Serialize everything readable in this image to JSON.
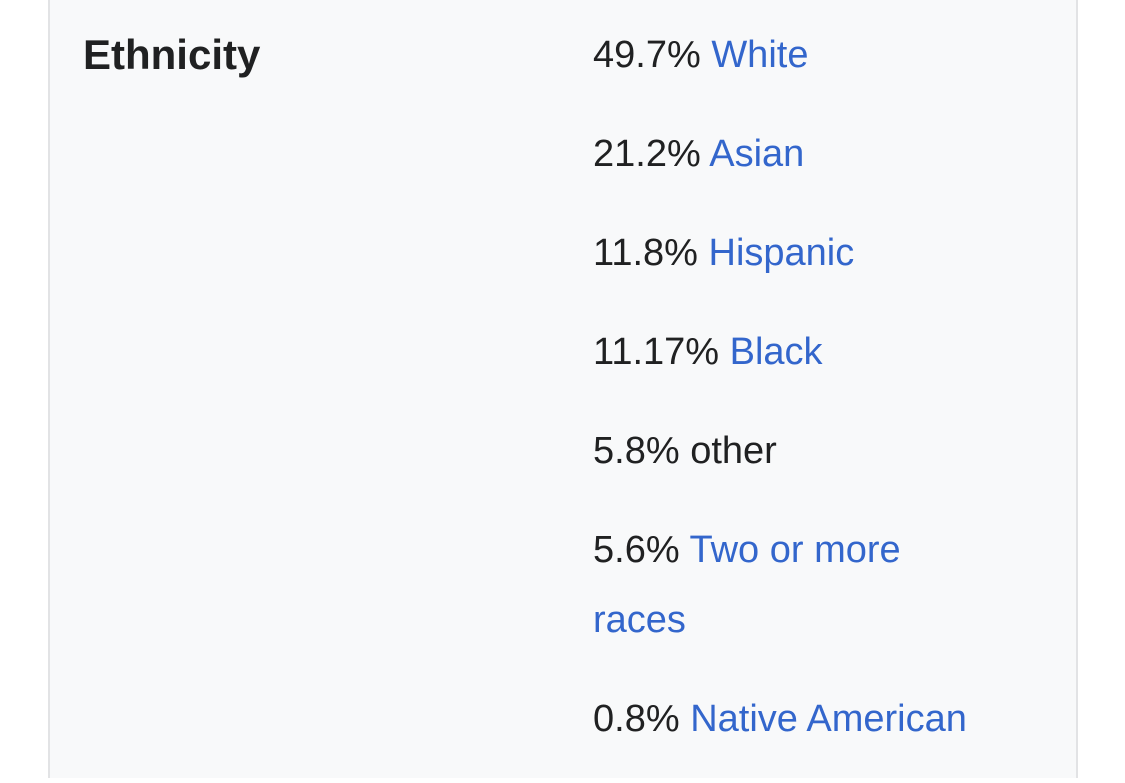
{
  "infobox": {
    "label": "Ethnicity",
    "rows": [
      {
        "percent": "49.7%",
        "name": "White"
      },
      {
        "percent": "21.2%",
        "name": "Asian"
      },
      {
        "percent": "11.8%",
        "name": "Hispanic"
      },
      {
        "percent": "11.17%",
        "name": "Black"
      },
      {
        "percent": "5.8%",
        "name": "other"
      },
      {
        "percent": "5.6%",
        "name": "Two or more races"
      },
      {
        "percent": "0.8%",
        "name": "Native American"
      }
    ]
  }
}
